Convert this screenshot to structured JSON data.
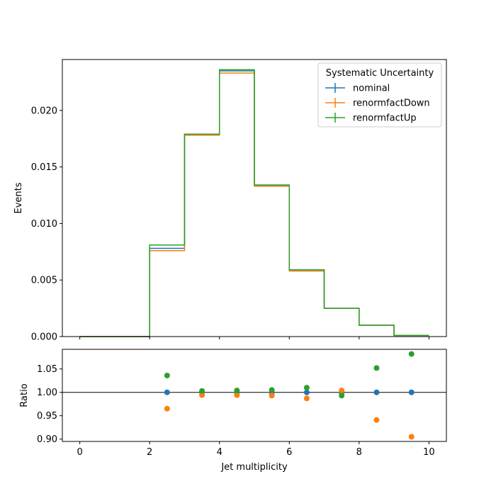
{
  "chart_data": {
    "type": "step",
    "xlabel": "Jet multiplicity",
    "x_ticks": [
      "0",
      "2",
      "4",
      "6",
      "8",
      "10"
    ],
    "x_tick_values": [
      0,
      2,
      4,
      6,
      8,
      10
    ],
    "xlim": [
      -0.5,
      10.5
    ],
    "bin_edges": [
      0,
      1,
      2,
      3,
      4,
      5,
      6,
      7,
      8,
      9,
      10
    ],
    "main": {
      "ylabel": "Events",
      "ylim": [
        0,
        0.0245
      ],
      "y_ticks": [
        "0.000",
        "0.005",
        "0.010",
        "0.015",
        "0.020"
      ],
      "y_tick_values": [
        0,
        0.005,
        0.01,
        0.015,
        0.02
      ],
      "legend": {
        "title": "Systematic Uncertainty",
        "placement": "top-right"
      },
      "series": [
        {
          "name": "nominal",
          "color": "#1f77b4",
          "values": [
            0,
            0,
            0.0078,
            0.0179,
            0.0235,
            0.0134,
            0.0059,
            0.0025,
            0.001,
            0.0001
          ]
        },
        {
          "name": "renormfactDown",
          "color": "#ff7f0e",
          "values": [
            0,
            0,
            0.0076,
            0.0178,
            0.0233,
            0.0133,
            0.0058,
            0.0025,
            0.001,
            0.0001
          ]
        },
        {
          "name": "renormfactUp",
          "color": "#2ca02c",
          "values": [
            0,
            0,
            0.0081,
            0.0179,
            0.0236,
            0.0134,
            0.0059,
            0.0025,
            0.001,
            0.0001
          ]
        }
      ]
    },
    "ratio": {
      "ylabel": "Ratio",
      "ylim": [
        0.895,
        1.092
      ],
      "y_ticks": [
        "0.90",
        "0.95",
        "1.00",
        "1.05"
      ],
      "y_tick_values": [
        0.9,
        0.95,
        1.0,
        1.05
      ],
      "reference_line": 1.0,
      "x": [
        2.5,
        3.5,
        4.5,
        5.5,
        6.5,
        7.5,
        8.5,
        9.5
      ],
      "series": [
        {
          "name": "nominal",
          "color": "#1f77b4",
          "values": [
            1.0,
            1.0,
            1.0,
            1.0,
            1.0,
            1.0,
            1.0,
            1.0
          ]
        },
        {
          "name": "renormfactDown",
          "color": "#ff7f0e",
          "values": [
            0.965,
            0.994,
            0.994,
            0.993,
            0.987,
            1.004,
            0.941,
            0.905
          ]
        },
        {
          "name": "renormfactUp",
          "color": "#2ca02c",
          "values": [
            1.036,
            1.003,
            1.004,
            1.005,
            1.01,
            0.993,
            1.052,
            1.082
          ]
        }
      ]
    }
  }
}
